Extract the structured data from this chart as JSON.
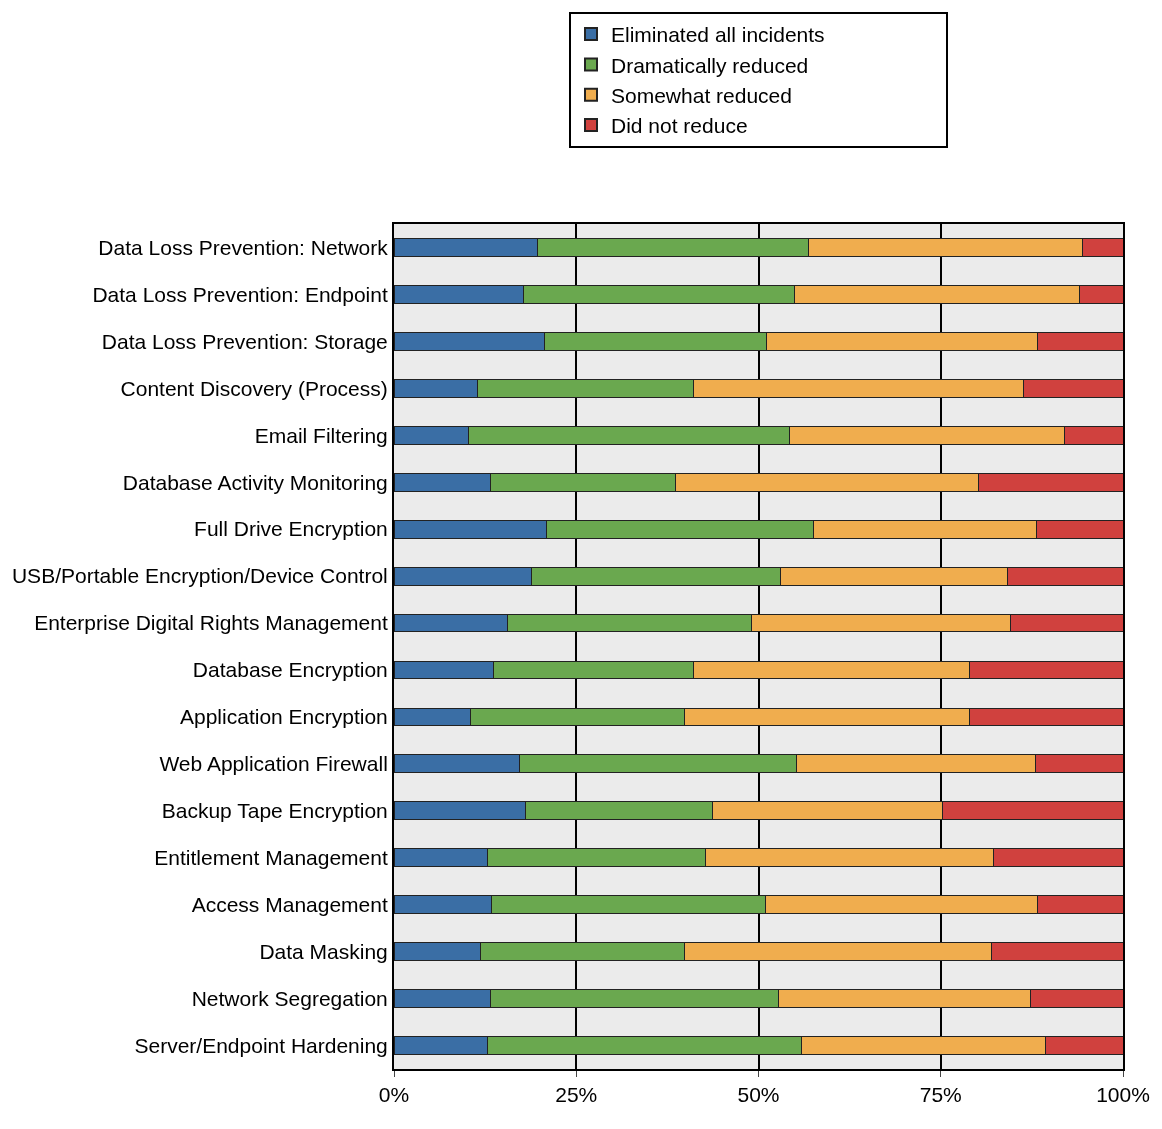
{
  "chart_data": {
    "type": "bar",
    "orientation": "horizontal",
    "stacked": true,
    "categories": [
      "Data Loss Prevention: Network",
      "Data Loss Prevention: Endpoint",
      "Data Loss Prevention: Storage",
      "Content Discovery (Process)",
      "Email Filtering",
      "Database Activity Monitoring",
      "Full Drive Encryption",
      "USB/Portable Encryption/Device Control",
      "Enterprise Digital Rights Management",
      "Database Encryption",
      "Application Encryption",
      "Web Application Firewall",
      "Backup Tape Encryption",
      "Entitlement Management",
      "Access Management",
      "Data Masking",
      "Network Segregation",
      "Server/Endpoint Hardening"
    ],
    "series": [
      {
        "name": "Eliminated all incidents",
        "color": "#3a6ea5",
        "values": [
          19.7,
          17.8,
          20.6,
          11.4,
          10.2,
          13.3,
          20.9,
          18.9,
          15.6,
          13.7,
          10.5,
          17.2,
          18.1,
          12.8,
          13.4,
          11.9,
          13.3,
          12.8
        ]
      },
      {
        "name": "Dramatically reduced",
        "color": "#6aa84f",
        "values": [
          37.2,
          37.2,
          30.5,
          29.7,
          44.0,
          25.3,
          36.6,
          34.1,
          33.5,
          27.4,
          29.3,
          38.0,
          25.6,
          29.9,
          37.5,
          27.9,
          39.4,
          43.1
        ]
      },
      {
        "name": "Somewhat reduced",
        "color": "#f0ad4e",
        "values": [
          37.5,
          39.1,
          37.2,
          45.2,
          37.8,
          41.6,
          30.6,
          31.2,
          35.4,
          37.8,
          39.1,
          32.8,
          31.6,
          39.5,
          37.4,
          42.2,
          34.6,
          33.5
        ]
      },
      {
        "name": "Did not reduce",
        "color": "#d0413e",
        "values": [
          5.6,
          5.9,
          11.7,
          13.7,
          8.0,
          19.8,
          11.9,
          15.8,
          15.5,
          21.1,
          21.1,
          12.0,
          24.7,
          17.8,
          11.7,
          18.0,
          12.7,
          10.6
        ]
      }
    ],
    "xlim": [
      0,
      100
    ],
    "xticks": [
      {
        "value": 0,
        "label": "0%"
      },
      {
        "value": 25,
        "label": "25%"
      },
      {
        "value": 50,
        "label": "50%"
      },
      {
        "value": 75,
        "label": "75%"
      },
      {
        "value": 100,
        "label": "100%"
      }
    ],
    "grid": "x",
    "legend": "top"
  }
}
